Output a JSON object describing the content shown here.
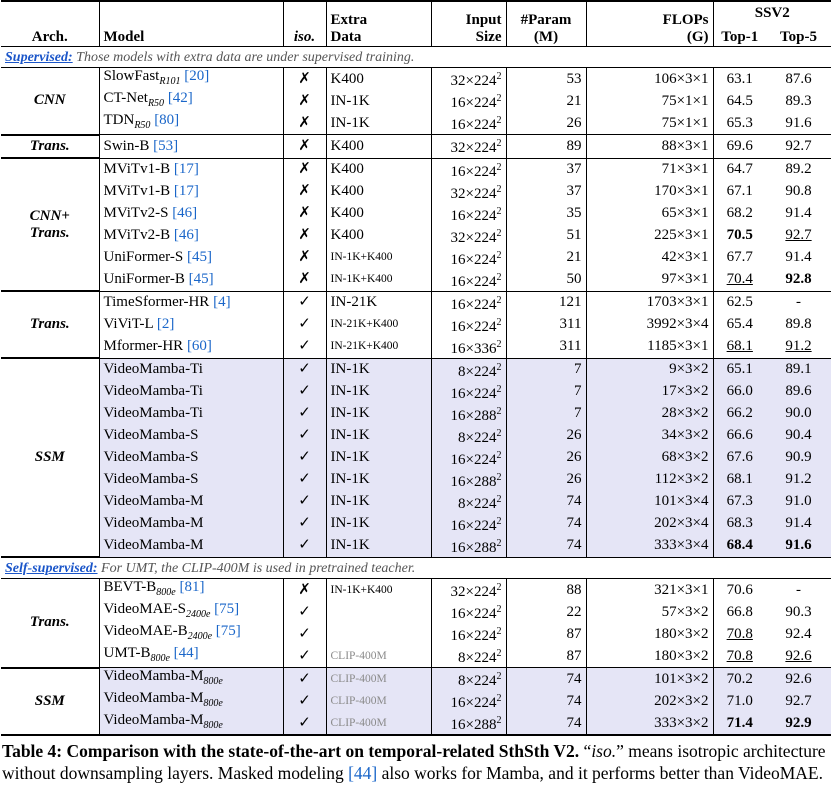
{
  "table": {
    "header": {
      "arch": "Arch.",
      "model": "Model",
      "iso": "iso.",
      "extra": [
        "Extra",
        "Data"
      ],
      "input": [
        "Input",
        "Size"
      ],
      "param": [
        "#Param",
        "(M)"
      ],
      "flops": [
        "FLOPs",
        "(G)"
      ],
      "ssv2": "SSV2",
      "top1": "Top-1",
      "top5": "Top-5"
    },
    "sections": [
      {
        "note": {
          "label": "Supervised:",
          "text": "Those models with extra data are under supervised training."
        },
        "groups": [
          {
            "arch": [
              "CNN"
            ],
            "rows": [
              {
                "model": {
                  "name": "SlowFast",
                  "sub": "R101",
                  "ref": "[20]"
                },
                "iso": "✗",
                "extra": "K400",
                "input": {
                  "base": "32×224",
                  "exp": "2"
                },
                "param": "53",
                "flops": "106×3×1",
                "top1": "63.1",
                "top5": "87.6"
              },
              {
                "model": {
                  "name": "CT-Net",
                  "sub": "R50",
                  "ref": "[42]"
                },
                "iso": "✗",
                "extra": "IN-1K",
                "input": {
                  "base": "16×224",
                  "exp": "2"
                },
                "param": "21",
                "flops": "75×1×1",
                "top1": "64.5",
                "top5": "89.3"
              },
              {
                "model": {
                  "name": "TDN",
                  "sub": "R50",
                  "ref": "[80]"
                },
                "iso": "✗",
                "extra": "IN-1K",
                "input": {
                  "base": "16×224",
                  "exp": "2"
                },
                "param": "26",
                "flops": "75×1×1",
                "top1": "65.3",
                "top5": "91.6"
              }
            ]
          },
          {
            "arch": [
              "Trans."
            ],
            "rows": [
              {
                "model": {
                  "name": "Swin-B",
                  "ref": "[53]"
                },
                "iso": "✗",
                "extra": "K400",
                "input": {
                  "base": "32×224",
                  "exp": "2"
                },
                "param": "89",
                "flops": "88×3×1",
                "top1": "69.6",
                "top5": "92.7"
              }
            ]
          },
          {
            "arch": [
              "CNN+",
              "Trans."
            ],
            "rows": [
              {
                "model": {
                  "name": "MViTv1-B",
                  "ref": "[17]"
                },
                "iso": "✗",
                "extra": "K400",
                "input": {
                  "base": "16×224",
                  "exp": "2"
                },
                "param": "37",
                "flops": "71×3×1",
                "top1": "64.7",
                "top5": "89.2"
              },
              {
                "model": {
                  "name": "MViTv1-B",
                  "ref": "[17]"
                },
                "iso": "✗",
                "extra": "K400",
                "input": {
                  "base": "32×224",
                  "exp": "2"
                },
                "param": "37",
                "flops": "170×3×1",
                "top1": "67.1",
                "top5": "90.8"
              },
              {
                "model": {
                  "name": "MViTv2-S",
                  "ref": "[46]"
                },
                "iso": "✗",
                "extra": "K400",
                "input": {
                  "base": "16×224",
                  "exp": "2"
                },
                "param": "35",
                "flops": "65×3×1",
                "top1": "68.2",
                "top5": "91.4"
              },
              {
                "model": {
                  "name": "MViTv2-B",
                  "ref": "[46]"
                },
                "iso": "✗",
                "extra": "K400",
                "input": {
                  "base": "32×224",
                  "exp": "2"
                },
                "param": "51",
                "flops": "225×3×1",
                "top1": "70.5",
                "top5": "92.7",
                "bold": [
                  "top1"
                ],
                "underline": [
                  "top5"
                ]
              },
              {
                "model": {
                  "name": "UniFormer-S",
                  "ref": "[45]"
                },
                "iso": "✗",
                "extra": "IN-1K+K400",
                "input": {
                  "base": "16×224",
                  "exp": "2"
                },
                "param": "21",
                "flops": "42×3×1",
                "top1": "67.7",
                "top5": "91.4"
              },
              {
                "model": {
                  "name": "UniFormer-B",
                  "ref": "[45]"
                },
                "iso": "✗",
                "extra": "IN-1K+K400",
                "input": {
                  "base": "16×224",
                  "exp": "2"
                },
                "param": "50",
                "flops": "97×3×1",
                "top1": "70.4",
                "top5": "92.8",
                "bold": [
                  "top5"
                ],
                "underline": [
                  "top1"
                ]
              }
            ]
          },
          {
            "arch": [
              "Trans."
            ],
            "rows": [
              {
                "model": {
                  "name": "TimeSformer-HR",
                  "ref": "[4]"
                },
                "iso": "✓",
                "extra": "IN-21K",
                "input": {
                  "base": "16×224",
                  "exp": "2"
                },
                "param": "121",
                "flops": "1703×3×1",
                "top1": "62.5",
                "top5": "-"
              },
              {
                "model": {
                  "name": "ViViT-L",
                  "ref": "[2]"
                },
                "iso": "✓",
                "extra": "IN-21K+K400",
                "input": {
                  "base": "16×224",
                  "exp": "2"
                },
                "param": "311",
                "flops": "3992×3×4",
                "top1": "65.4",
                "top5": "89.8"
              },
              {
                "model": {
                  "name": "Mformer-HR",
                  "ref": "[60]"
                },
                "iso": "✓",
                "extra": "IN-21K+K400",
                "input": {
                  "base": "16×336",
                  "exp": "2"
                },
                "param": "311",
                "flops": "1185×3×1",
                "top1": "68.1",
                "top5": "91.2",
                "underline": [
                  "top1",
                  "top5"
                ]
              }
            ]
          },
          {
            "arch": [
              "SSM"
            ],
            "shaded": true,
            "rows": [
              {
                "model": {
                  "name": "VideoMamba-Ti"
                },
                "iso": "✓",
                "extra": "IN-1K",
                "input": {
                  "base": "8×224",
                  "exp": "2"
                },
                "param": "7",
                "flops": "9×3×2",
                "top1": "65.1",
                "top5": "89.1"
              },
              {
                "model": {
                  "name": "VideoMamba-Ti"
                },
                "iso": "✓",
                "extra": "IN-1K",
                "input": {
                  "base": "16×224",
                  "exp": "2"
                },
                "param": "7",
                "flops": "17×3×2",
                "top1": "66.0",
                "top5": "89.6"
              },
              {
                "model": {
                  "name": "VideoMamba-Ti"
                },
                "iso": "✓",
                "extra": "IN-1K",
                "input": {
                  "base": "16×288",
                  "exp": "2"
                },
                "param": "7",
                "flops": "28×3×2",
                "top1": "66.2",
                "top5": "90.0"
              },
              {
                "model": {
                  "name": "VideoMamba-S"
                },
                "iso": "✓",
                "extra": "IN-1K",
                "input": {
                  "base": "8×224",
                  "exp": "2"
                },
                "param": "26",
                "flops": "34×3×2",
                "top1": "66.6",
                "top5": "90.4"
              },
              {
                "model": {
                  "name": "VideoMamba-S"
                },
                "iso": "✓",
                "extra": "IN-1K",
                "input": {
                  "base": "16×224",
                  "exp": "2"
                },
                "param": "26",
                "flops": "68×3×2",
                "top1": "67.6",
                "top5": "90.9"
              },
              {
                "model": {
                  "name": "VideoMamba-S"
                },
                "iso": "✓",
                "extra": "IN-1K",
                "input": {
                  "base": "16×288",
                  "exp": "2"
                },
                "param": "26",
                "flops": "112×3×2",
                "top1": "68.1",
                "top5": "91.2"
              },
              {
                "model": {
                  "name": "VideoMamba-M"
                },
                "iso": "✓",
                "extra": "IN-1K",
                "input": {
                  "base": "8×224",
                  "exp": "2"
                },
                "param": "74",
                "flops": "101×3×4",
                "top1": "67.3",
                "top5": "91.0"
              },
              {
                "model": {
                  "name": "VideoMamba-M"
                },
                "iso": "✓",
                "extra": "IN-1K",
                "input": {
                  "base": "16×224",
                  "exp": "2"
                },
                "param": "74",
                "flops": "202×3×4",
                "top1": "68.3",
                "top5": "91.4"
              },
              {
                "model": {
                  "name": "VideoMamba-M"
                },
                "iso": "✓",
                "extra": "IN-1K",
                "input": {
                  "base": "16×288",
                  "exp": "2"
                },
                "param": "74",
                "flops": "333×3×4",
                "top1": "68.4",
                "top5": "91.6",
                "bold": [
                  "top1",
                  "top5"
                ]
              }
            ]
          }
        ]
      },
      {
        "note": {
          "label": "Self-supervised:",
          "text": "For UMT, the CLIP-400M is used in pretrained teacher."
        },
        "groups": [
          {
            "arch": [
              "Trans."
            ],
            "rows": [
              {
                "model": {
                  "name": "BEVT-B",
                  "sub": "800e",
                  "ref": "[81]"
                },
                "iso": "✗",
                "extra": "IN-1K+K400",
                "input": {
                  "base": "32×224",
                  "exp": "2"
                },
                "param": "88",
                "flops": "321×3×1",
                "top1": "70.6",
                "top5": "-"
              },
              {
                "model": {
                  "name": "VideoMAE-S",
                  "sub": "2400e",
                  "ref": "[75]"
                },
                "iso": "✓",
                "input": {
                  "base": "16×224",
                  "exp": "2"
                },
                "param": "22",
                "flops": "57×3×2",
                "top1": "66.8",
                "top5": "90.3"
              },
              {
                "model": {
                  "name": "VideoMAE-B",
                  "sub": "2400e",
                  "ref": "[75]"
                },
                "iso": "✓",
                "input": {
                  "base": "16×224",
                  "exp": "2"
                },
                "param": "87",
                "flops": "180×3×2",
                "top1": "70.8",
                "top5": "92.4",
                "underline": [
                  "top1"
                ]
              },
              {
                "model": {
                  "name": "UMT-B",
                  "sub": "800e",
                  "ref": "[44]"
                },
                "iso": "✓",
                "extra": "CLIP-400M",
                "extra_color": "#8a8a8a",
                "input": {
                  "base": "8×224",
                  "exp": "2"
                },
                "param": "87",
                "flops": "180×3×2",
                "top1": "70.8",
                "top5": "92.6",
                "underline": [
                  "top1",
                  "top5"
                ]
              }
            ]
          },
          {
            "arch": [
              "SSM"
            ],
            "shaded": true,
            "rows": [
              {
                "model": {
                  "name": "VideoMamba-M",
                  "sub": "800e"
                },
                "iso": "✓",
                "extra": "CLIP-400M",
                "extra_color": "#8a8a8a",
                "input": {
                  "base": "8×224",
                  "exp": "2"
                },
                "param": "74",
                "flops": "101×3×2",
                "top1": "70.2",
                "top5": "92.6"
              },
              {
                "model": {
                  "name": "VideoMamba-M",
                  "sub": "800e"
                },
                "iso": "✓",
                "extra": "CLIP-400M",
                "extra_color": "#8a8a8a",
                "input": {
                  "base": "16×224",
                  "exp": "2"
                },
                "param": "74",
                "flops": "202×3×2",
                "top1": "71.0",
                "top5": "92.7"
              },
              {
                "model": {
                  "name": "VideoMamba-M",
                  "sub": "800e"
                },
                "iso": "✓",
                "extra": "CLIP-400M",
                "extra_color": "#8a8a8a",
                "input": {
                  "base": "16×288",
                  "exp": "2"
                },
                "param": "74",
                "flops": "333×3×2",
                "top1": "71.4",
                "top5": "92.9",
                "bold": [
                  "top1",
                  "top5"
                ]
              }
            ]
          }
        ]
      }
    ]
  },
  "caption": {
    "title": "Table 4: Comparison with the state-of-the-art on temporal-related SthSth V2.",
    "open": " “",
    "iso": "iso.",
    "body": "” means isotropic architecture without downsampling layers. Masked modeling ",
    "ref": "[44]",
    "end": " also works for Mamba, and it performs better than VideoMAE."
  }
}
